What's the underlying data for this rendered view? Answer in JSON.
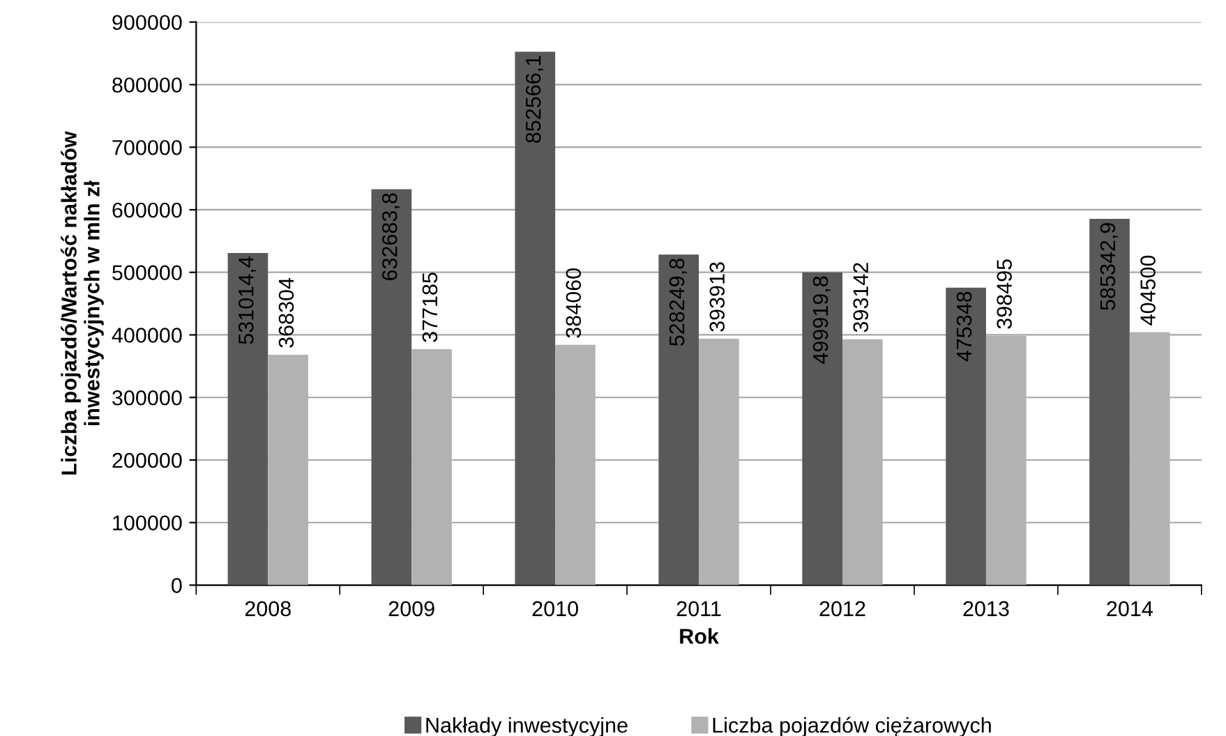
{
  "chart_data": {
    "type": "bar",
    "xlabel": "Rok",
    "ylabel": "Liczba pojazdó/Wartość nakładów\ninwestycyjnych w mln zł",
    "categories": [
      "2008",
      "2009",
      "2010",
      "2011",
      "2012",
      "2013",
      "2014"
    ],
    "series": [
      {
        "name": "Nakłady inwestycyjne",
        "color": "#595959",
        "values": [
          531014.4,
          632683.8,
          852566.1,
          528249.8,
          499919.8,
          475348,
          585342.9
        ],
        "value_labels": [
          "531014,4",
          "632683,8",
          "852566,1",
          "528249,8",
          "499919,8",
          "475348",
          "585342,9"
        ]
      },
      {
        "name": "Liczba pojazdów ciężarowych",
        "color": "#b2b2b2",
        "values": [
          368304,
          377185,
          384060,
          393913,
          393142,
          398495,
          404500
        ],
        "value_labels": [
          "368304",
          "377185",
          "384060",
          "393913",
          "393142",
          "398495",
          "404500"
        ]
      }
    ],
    "ylim": [
      0,
      900000
    ],
    "yticks": [
      0,
      100000,
      200000,
      300000,
      400000,
      500000,
      600000,
      700000,
      800000,
      900000
    ],
    "grid": "y",
    "legend": "bottom"
  }
}
